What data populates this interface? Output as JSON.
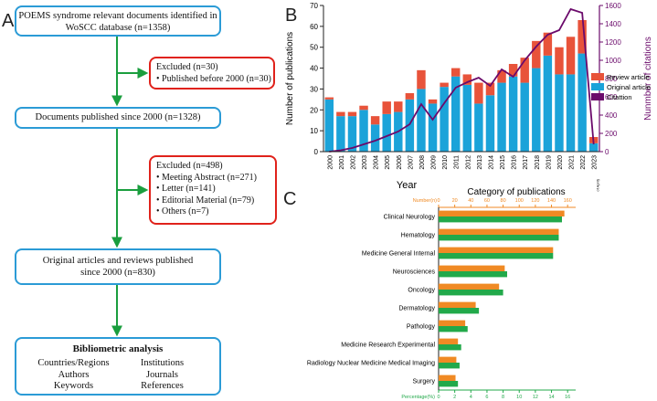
{
  "flowchart": {
    "panel_label": "A",
    "identified": "POEMS syndrome relevant documents identified in WoSCC database (n=1358)",
    "excluded1_title": "Excluded (n=30)",
    "excluded1_items": [
      "• Published before 2000 (n=30)"
    ],
    "since2000": "Documents published since 2000 (n=1328)",
    "excluded2_title": "Excluded (n=498)",
    "excluded2_items": [
      "• Meeting Abstract (n=271)",
      "• Letter (n=141)",
      "• Editorial Material (n=79)",
      "• Others (n=7)"
    ],
    "original": "Original articles and reviews published since 2000 (n=830)",
    "bib_title": "Bibliometric analysis",
    "bib_items": [
      "Countries/Regions",
      "Institutions",
      "Authors",
      "Journals",
      "Keywords",
      "References"
    ],
    "colors": {
      "box_border": "#2b9bd6",
      "excluded_border": "#e0221b",
      "arrow": "#1a9e3e"
    }
  },
  "chart_data": [
    {
      "panel_label": "B",
      "type": "bar",
      "stacked": true,
      "categories": [
        "2000",
        "2001",
        "2002",
        "2003",
        "2004",
        "2005",
        "2006",
        "2007",
        "2008",
        "2009",
        "2010",
        "2011",
        "2012",
        "2013",
        "2014",
        "2015",
        "2016",
        "2017",
        "2018",
        "2019",
        "2020",
        "2021",
        "2022",
        "2023"
      ],
      "category_note": "2023 (as of April)",
      "series": [
        {
          "name": "Original article",
          "color": "#1ba3d9",
          "values": [
            25,
            17,
            17,
            20,
            13,
            18,
            19,
            25,
            30,
            23,
            31,
            36,
            32,
            23,
            27,
            33,
            36,
            33,
            40,
            46,
            37,
            37,
            47,
            4
          ]
        },
        {
          "name": "Review article",
          "color": "#e8533a",
          "values": [
            1,
            2,
            2,
            2,
            4,
            6,
            5,
            3,
            9,
            2,
            2,
            4,
            5,
            10,
            6,
            6,
            6,
            12,
            13,
            11,
            13,
            18,
            16,
            3
          ]
        }
      ],
      "line_series": {
        "name": "Citattion",
        "color": "#6b0a6b",
        "axis": "right",
        "values": [
          0,
          15,
          40,
          80,
          120,
          170,
          220,
          300,
          520,
          350,
          530,
          700,
          760,
          810,
          720,
          900,
          820,
          1000,
          1150,
          1280,
          1330,
          1560,
          1520,
          80
        ]
      },
      "xlabel": "Year",
      "ylabel": "Number of publications",
      "y2label": "Nunmber of citations",
      "ylim": [
        0,
        70
      ],
      "y_ticks": [
        0,
        10,
        20,
        30,
        40,
        50,
        60,
        70
      ],
      "y2lim": [
        0,
        1600
      ],
      "y2_ticks": [
        0,
        200,
        400,
        600,
        800,
        1000,
        1200,
        1400,
        1600
      ],
      "legend": [
        "Review article",
        "Original article",
        "Citattion"
      ],
      "legend_position": "right"
    },
    {
      "panel_label": "C",
      "type": "bar",
      "orientation": "horizontal",
      "title": "Category of publications",
      "categories": [
        "Clinical Neurology",
        "Hematology",
        "Medicine General Internal",
        "Neurosciences",
        "Oncology",
        "Dermatology",
        "Pathology",
        "Medicine Research Experimental",
        "Radiology Nuclear Medicine Medical Imaging",
        "Surgery"
      ],
      "series": [
        {
          "name": "Number(n)",
          "color": "#f08a24",
          "axis": "top",
          "values": [
            156,
            149,
            142,
            82,
            75,
            46,
            33,
            24,
            22,
            21
          ]
        },
        {
          "name": "Percentage(%)",
          "color": "#22a94a",
          "axis": "bottom",
          "values": [
            15.3,
            14.9,
            14.2,
            8.5,
            8.0,
            5.0,
            3.6,
            2.8,
            2.6,
            2.4
          ]
        }
      ],
      "top_axis_label": "Number(n)",
      "top_ticks": [
        0,
        20,
        40,
        60,
        80,
        100,
        120,
        140,
        160
      ],
      "top_lim": [
        0,
        170
      ],
      "bottom_axis_label": "Percentage(%)",
      "bottom_ticks": [
        0,
        2,
        4,
        6,
        8,
        10,
        12,
        14,
        16
      ],
      "bottom_lim": [
        0,
        17
      ]
    }
  ]
}
